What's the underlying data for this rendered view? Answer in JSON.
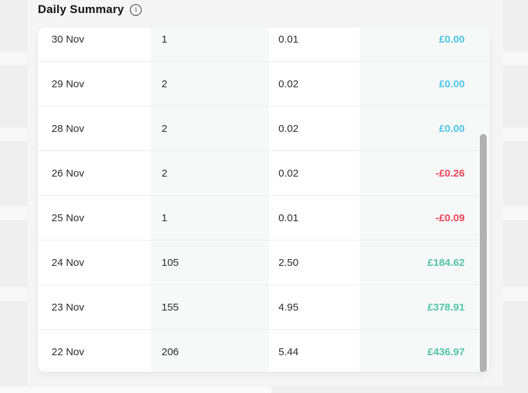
{
  "header": {
    "title": "Daily Summary",
    "info_glyph": "i"
  },
  "table": {
    "rows": [
      {
        "date": "30 Nov",
        "count": "1",
        "units": "0.01",
        "amount": "£0.00",
        "amount_type": "zero"
      },
      {
        "date": "29 Nov",
        "count": "2",
        "units": "0.02",
        "amount": "£0.00",
        "amount_type": "zero"
      },
      {
        "date": "28 Nov",
        "count": "2",
        "units": "0.02",
        "amount": "£0.00",
        "amount_type": "zero"
      },
      {
        "date": "26 Nov",
        "count": "2",
        "units": "0.02",
        "amount": "-£0.26",
        "amount_type": "negative"
      },
      {
        "date": "25 Nov",
        "count": "1",
        "units": "0.01",
        "amount": "-£0.09",
        "amount_type": "negative"
      },
      {
        "date": "24 Nov",
        "count": "105",
        "units": "2.50",
        "amount": "£184.62",
        "amount_type": "positive"
      },
      {
        "date": "23 Nov",
        "count": "155",
        "units": "4.95",
        "amount": "£378.91",
        "amount_type": "positive"
      },
      {
        "date": "22 Nov",
        "count": "206",
        "units": "5.44",
        "amount": "£436.97",
        "amount_type": "positive"
      }
    ],
    "amount_colors": {
      "zero": "#4ec4ea",
      "negative": "#f14459",
      "positive": "#52c5a8"
    }
  }
}
